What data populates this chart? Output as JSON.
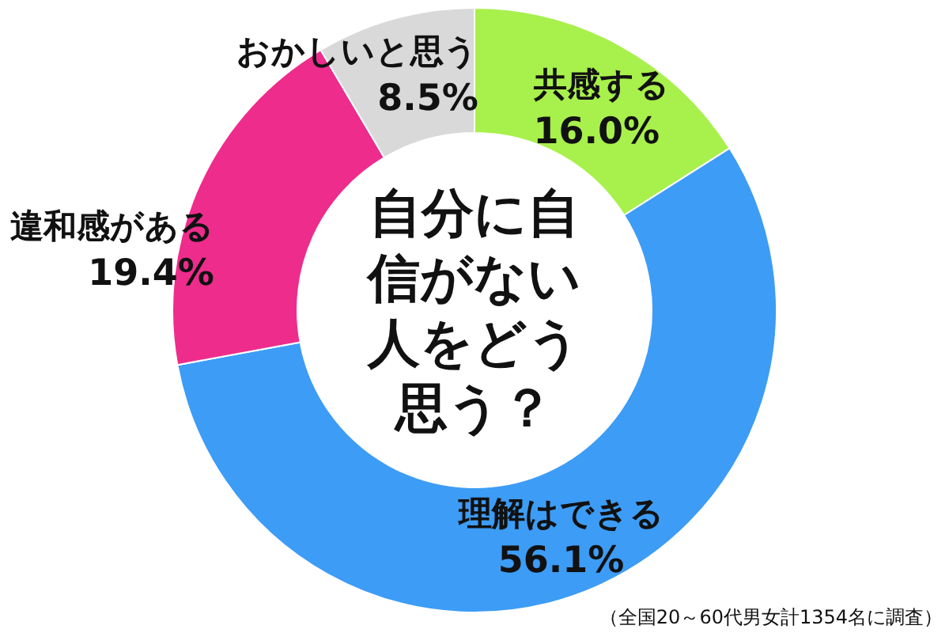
{
  "chart_data": {
    "type": "donut",
    "title": "自分に自信がない人をどう思う？",
    "categories": [
      "共感する",
      "理解はできる",
      "違和感がある",
      "おかしいと思う"
    ],
    "values": [
      16.0,
      56.1,
      19.4,
      8.5
    ],
    "value_labels": [
      "16.0%",
      "56.1%",
      "19.4%",
      "8.5%"
    ],
    "colors": [
      "#a8f04c",
      "#3d9cf5",
      "#ee2c8c",
      "#d9d9d9"
    ],
    "annotations": [
      "（全国20～60代男女計1354名に調査）"
    ]
  }
}
